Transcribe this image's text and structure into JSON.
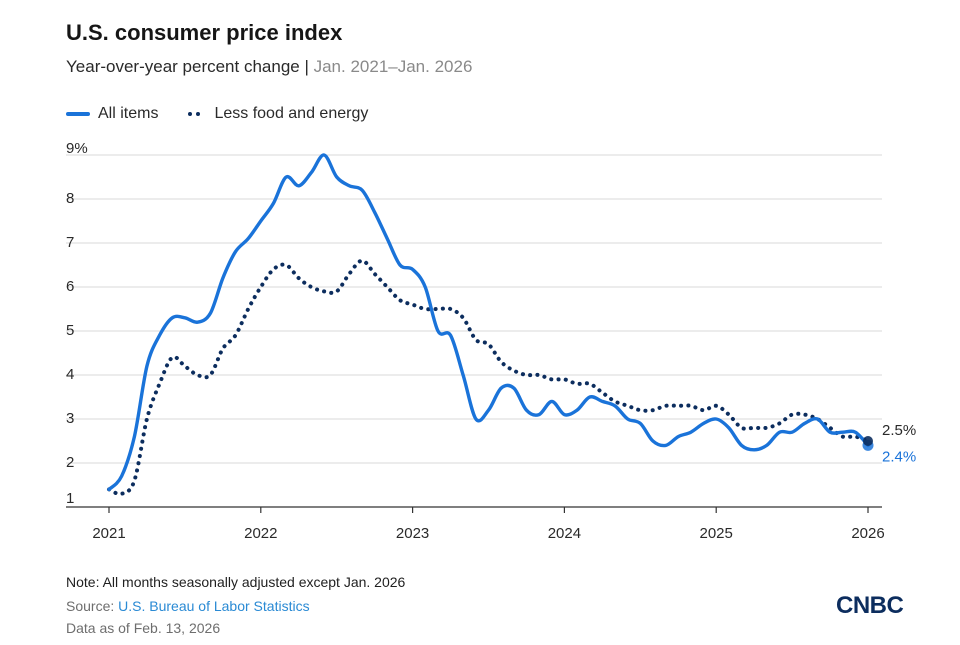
{
  "header": {
    "title": "U.S. consumer price index",
    "subtitle_main": "Year-over-year percent change |",
    "subtitle_range": " Jan. 2021–Jan. 2026"
  },
  "legend": {
    "all_items": "All items",
    "core": "Less food and energy"
  },
  "footer": {
    "note": "Note: All months seasonally adjusted except Jan. 2026",
    "source_prefix": "Source: ",
    "source_link": "U.S. Bureau of Labor Statistics",
    "as_of": "Data as of Feb. 13, 2026",
    "logo": "CNBC"
  },
  "colors": {
    "all_items": "#1a73d9",
    "core": "#0c2d5e",
    "grid": "#d9d9d9",
    "axis": "#333333"
  },
  "chart_data": {
    "type": "line",
    "title": "U.S. consumer price index",
    "xlabel": "",
    "ylabel": "Year-over-year percent change",
    "ylim": [
      1,
      9
    ],
    "xlim": [
      2021,
      2026
    ],
    "y_ticks": [
      1,
      2,
      3,
      4,
      5,
      6,
      7,
      8,
      9
    ],
    "y_tick_labels": [
      "1",
      "2",
      "3",
      "4",
      "5",
      "6",
      "7",
      "8",
      "9%"
    ],
    "x_ticks": [
      2021,
      2022,
      2023,
      2024,
      2025,
      2026
    ],
    "x_tick_labels": [
      "2021",
      "2022",
      "2023",
      "2024",
      "2025",
      "2026"
    ],
    "end_labels": {
      "all_items": "2.4%",
      "core": "2.5%"
    },
    "series": [
      {
        "name": "All items",
        "style": "solid",
        "x": [
          2021.0,
          2021.083,
          2021.167,
          2021.25,
          2021.333,
          2021.417,
          2021.5,
          2021.583,
          2021.667,
          2021.75,
          2021.833,
          2021.917,
          2022.0,
          2022.083,
          2022.167,
          2022.25,
          2022.333,
          2022.417,
          2022.5,
          2022.583,
          2022.667,
          2022.75,
          2022.833,
          2022.917,
          2023.0,
          2023.083,
          2023.167,
          2023.25,
          2023.333,
          2023.417,
          2023.5,
          2023.583,
          2023.667,
          2023.75,
          2023.833,
          2023.917,
          2024.0,
          2024.083,
          2024.167,
          2024.25,
          2024.333,
          2024.417,
          2024.5,
          2024.583,
          2024.667,
          2024.75,
          2024.833,
          2024.917,
          2025.0,
          2025.083,
          2025.167,
          2025.25,
          2025.333,
          2025.417,
          2025.5,
          2025.583,
          2025.667,
          2025.75,
          2025.833,
          2025.917,
          2026.0
        ],
        "values": [
          1.4,
          1.7,
          2.6,
          4.2,
          4.9,
          5.3,
          5.3,
          5.2,
          5.4,
          6.2,
          6.8,
          7.1,
          7.5,
          7.9,
          8.5,
          8.3,
          8.6,
          9.0,
          8.5,
          8.3,
          8.2,
          7.7,
          7.1,
          6.5,
          6.4,
          6.0,
          5.0,
          4.9,
          4.0,
          3.0,
          3.2,
          3.7,
          3.7,
          3.2,
          3.1,
          3.4,
          3.1,
          3.2,
          3.5,
          3.4,
          3.3,
          3.0,
          2.9,
          2.5,
          2.4,
          2.6,
          2.7,
          2.9,
          3.0,
          2.8,
          2.4,
          2.3,
          2.4,
          2.7,
          2.7,
          2.9,
          3.0,
          2.7,
          2.7,
          2.7,
          2.4
        ]
      },
      {
        "name": "Less food and energy",
        "style": "dotted",
        "x": [
          2021.0,
          2021.083,
          2021.167,
          2021.25,
          2021.333,
          2021.417,
          2021.5,
          2021.583,
          2021.667,
          2021.75,
          2021.833,
          2021.917,
          2022.0,
          2022.083,
          2022.167,
          2022.25,
          2022.333,
          2022.417,
          2022.5,
          2022.583,
          2022.667,
          2022.75,
          2022.833,
          2022.917,
          2023.0,
          2023.083,
          2023.167,
          2023.25,
          2023.333,
          2023.417,
          2023.5,
          2023.583,
          2023.667,
          2023.75,
          2023.833,
          2023.917,
          2024.0,
          2024.083,
          2024.167,
          2024.25,
          2024.333,
          2024.417,
          2024.5,
          2024.583,
          2024.667,
          2024.75,
          2024.833,
          2024.917,
          2025.0,
          2025.083,
          2025.167,
          2025.25,
          2025.333,
          2025.417,
          2025.5,
          2025.583,
          2025.667,
          2025.75,
          2025.833,
          2025.917,
          2026.0
        ],
        "values": [
          1.4,
          1.3,
          1.6,
          3.0,
          3.8,
          4.4,
          4.2,
          4.0,
          4.0,
          4.6,
          4.9,
          5.5,
          6.0,
          6.4,
          6.5,
          6.2,
          6.0,
          5.9,
          5.9,
          6.3,
          6.6,
          6.3,
          6.0,
          5.7,
          5.6,
          5.5,
          5.5,
          5.5,
          5.3,
          4.8,
          4.7,
          4.3,
          4.1,
          4.0,
          4.0,
          3.9,
          3.9,
          3.8,
          3.8,
          3.6,
          3.4,
          3.3,
          3.2,
          3.2,
          3.3,
          3.3,
          3.3,
          3.2,
          3.3,
          3.1,
          2.8,
          2.8,
          2.8,
          2.9,
          3.1,
          3.1,
          3.0,
          2.8,
          2.6,
          2.6,
          2.5
        ]
      }
    ]
  }
}
